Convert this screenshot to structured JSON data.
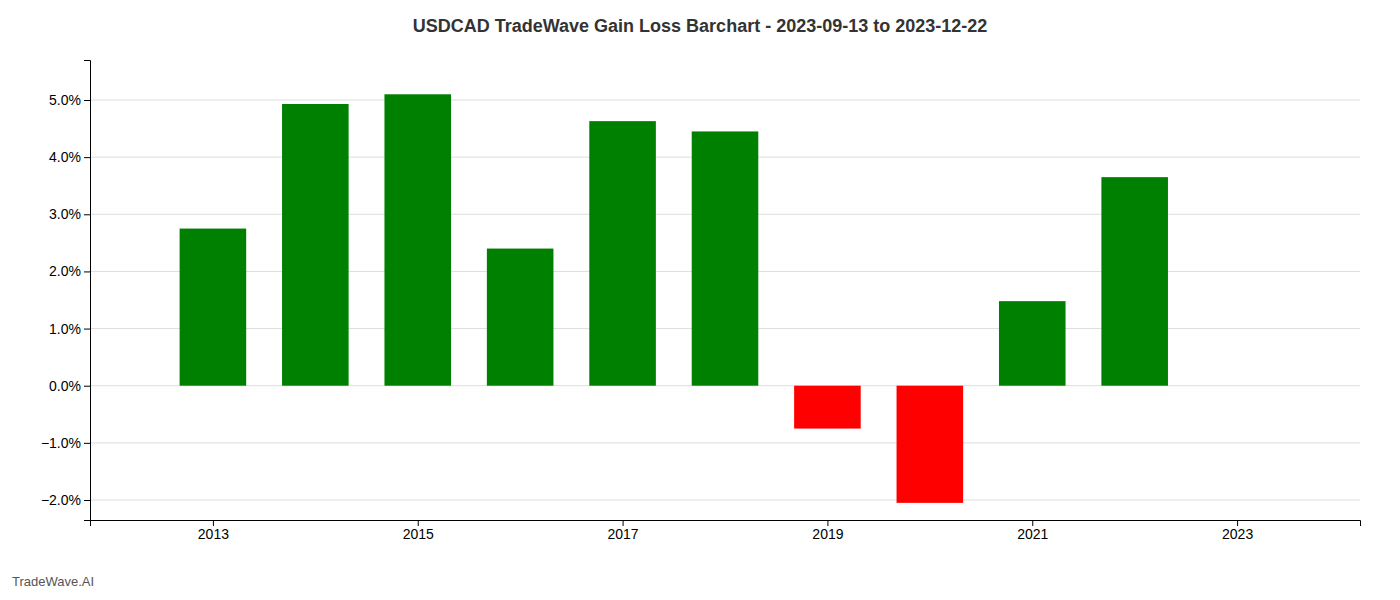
{
  "chart_data": {
    "type": "bar",
    "title": "USDCAD TradeWave Gain Loss Barchart - 2023-09-13 to 2023-12-22",
    "annotations": [
      "TradeWave.AI"
    ],
    "x": [
      2013,
      2014,
      2015,
      2016,
      2017,
      2018,
      2019,
      2020,
      2021,
      2022
    ],
    "values": [
      0.0275,
      0.0493,
      0.051,
      0.024,
      0.0463,
      0.0445,
      -0.0075,
      -0.0205,
      0.0148,
      0.0365
    ],
    "colors": [
      "#008000",
      "#008000",
      "#008000",
      "#008000",
      "#008000",
      "#008000",
      "#ff0000",
      "#ff0000",
      "#008000",
      "#008000"
    ],
    "xlim": [
      2011.8,
      2024.2
    ],
    "xticks": [
      2013,
      2015,
      2017,
      2019,
      2021,
      2023
    ],
    "ylim": [
      -0.0235,
      0.057
    ],
    "yticks": [
      {
        "value": -0.02,
        "label": "−2.0%"
      },
      {
        "value": -0.01,
        "label": "−1.0%"
      },
      {
        "value": 0.0,
        "label": "0.0%"
      },
      {
        "value": 0.01,
        "label": "1.0%"
      },
      {
        "value": 0.02,
        "label": "2.0%"
      },
      {
        "value": 0.03,
        "label": "3.0%"
      },
      {
        "value": 0.04,
        "label": "4.0%"
      },
      {
        "value": 0.05,
        "label": "5.0%"
      }
    ],
    "grid": true
  }
}
